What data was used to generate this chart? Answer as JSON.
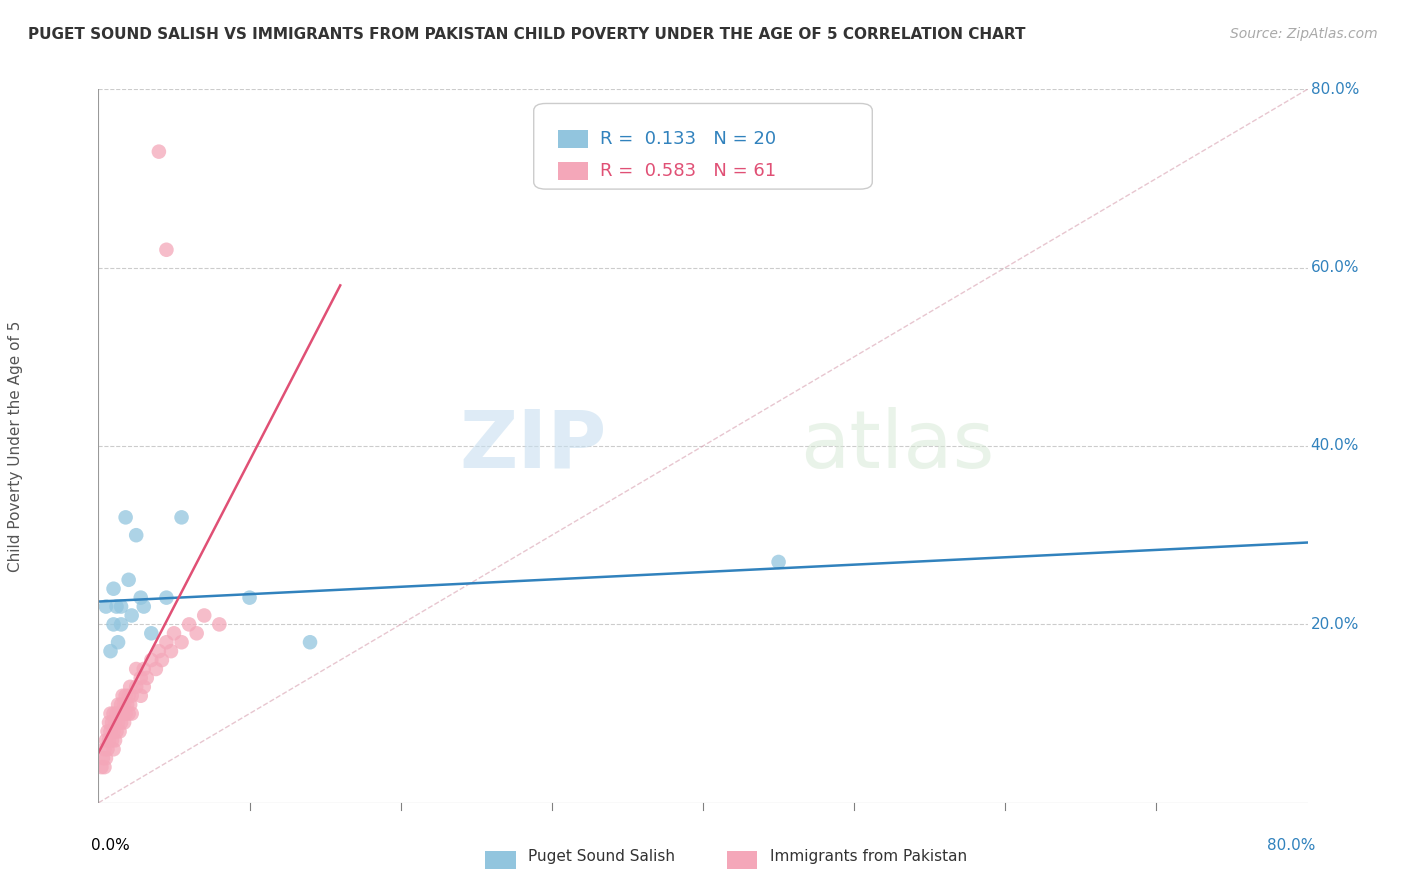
{
  "title": "PUGET SOUND SALISH VS IMMIGRANTS FROM PAKISTAN CHILD POVERTY UNDER THE AGE OF 5 CORRELATION CHART",
  "source": "Source: ZipAtlas.com",
  "ylabel": "Child Poverty Under the Age of 5",
  "legend_labels": [
    "Puget Sound Salish",
    "Immigrants from Pakistan"
  ],
  "legend_r": [
    0.133,
    0.583
  ],
  "legend_n": [
    20,
    61
  ],
  "blue_color": "#92c5de",
  "pink_color": "#f4a7b9",
  "blue_line_color": "#3182bd",
  "pink_line_color": "#e05075",
  "pink_dash_color": "#d8a0b0",
  "watermark_zip": "ZIP",
  "watermark_atlas": "atlas",
  "xlim": [
    0.0,
    0.8
  ],
  "ylim": [
    0.0,
    0.8
  ],
  "yticks": [
    0.0,
    0.2,
    0.4,
    0.6,
    0.8
  ],
  "xticks_minor": [
    0.1,
    0.2,
    0.3,
    0.4,
    0.5,
    0.6,
    0.7
  ],
  "blue_scatter_x": [
    0.005,
    0.008,
    0.01,
    0.01,
    0.012,
    0.013,
    0.015,
    0.015,
    0.018,
    0.02,
    0.022,
    0.025,
    0.028,
    0.03,
    0.035,
    0.045,
    0.055,
    0.1,
    0.45,
    0.14
  ],
  "blue_scatter_y": [
    0.22,
    0.17,
    0.24,
    0.2,
    0.22,
    0.18,
    0.22,
    0.2,
    0.32,
    0.25,
    0.21,
    0.3,
    0.23,
    0.22,
    0.19,
    0.23,
    0.32,
    0.23,
    0.27,
    0.18
  ],
  "pink_scatter_x": [
    0.002,
    0.003,
    0.004,
    0.004,
    0.005,
    0.005,
    0.006,
    0.006,
    0.007,
    0.007,
    0.008,
    0.008,
    0.009,
    0.009,
    0.01,
    0.01,
    0.01,
    0.011,
    0.011,
    0.012,
    0.012,
    0.013,
    0.013,
    0.014,
    0.014,
    0.015,
    0.015,
    0.016,
    0.016,
    0.017,
    0.017,
    0.018,
    0.018,
    0.019,
    0.02,
    0.02,
    0.021,
    0.021,
    0.022,
    0.022,
    0.025,
    0.025,
    0.028,
    0.028,
    0.03,
    0.03,
    0.032,
    0.035,
    0.038,
    0.04,
    0.042,
    0.045,
    0.048,
    0.05,
    0.055,
    0.06,
    0.065,
    0.07,
    0.08,
    0.04,
    0.045
  ],
  "pink_scatter_y": [
    0.04,
    0.05,
    0.06,
    0.04,
    0.05,
    0.07,
    0.06,
    0.08,
    0.07,
    0.09,
    0.08,
    0.1,
    0.07,
    0.09,
    0.06,
    0.08,
    0.1,
    0.07,
    0.09,
    0.08,
    0.1,
    0.09,
    0.11,
    0.08,
    0.1,
    0.09,
    0.11,
    0.1,
    0.12,
    0.09,
    0.11,
    0.1,
    0.12,
    0.11,
    0.1,
    0.12,
    0.11,
    0.13,
    0.1,
    0.12,
    0.13,
    0.15,
    0.12,
    0.14,
    0.13,
    0.15,
    0.14,
    0.16,
    0.15,
    0.17,
    0.16,
    0.18,
    0.17,
    0.19,
    0.18,
    0.2,
    0.19,
    0.21,
    0.2,
    0.73,
    0.62
  ]
}
